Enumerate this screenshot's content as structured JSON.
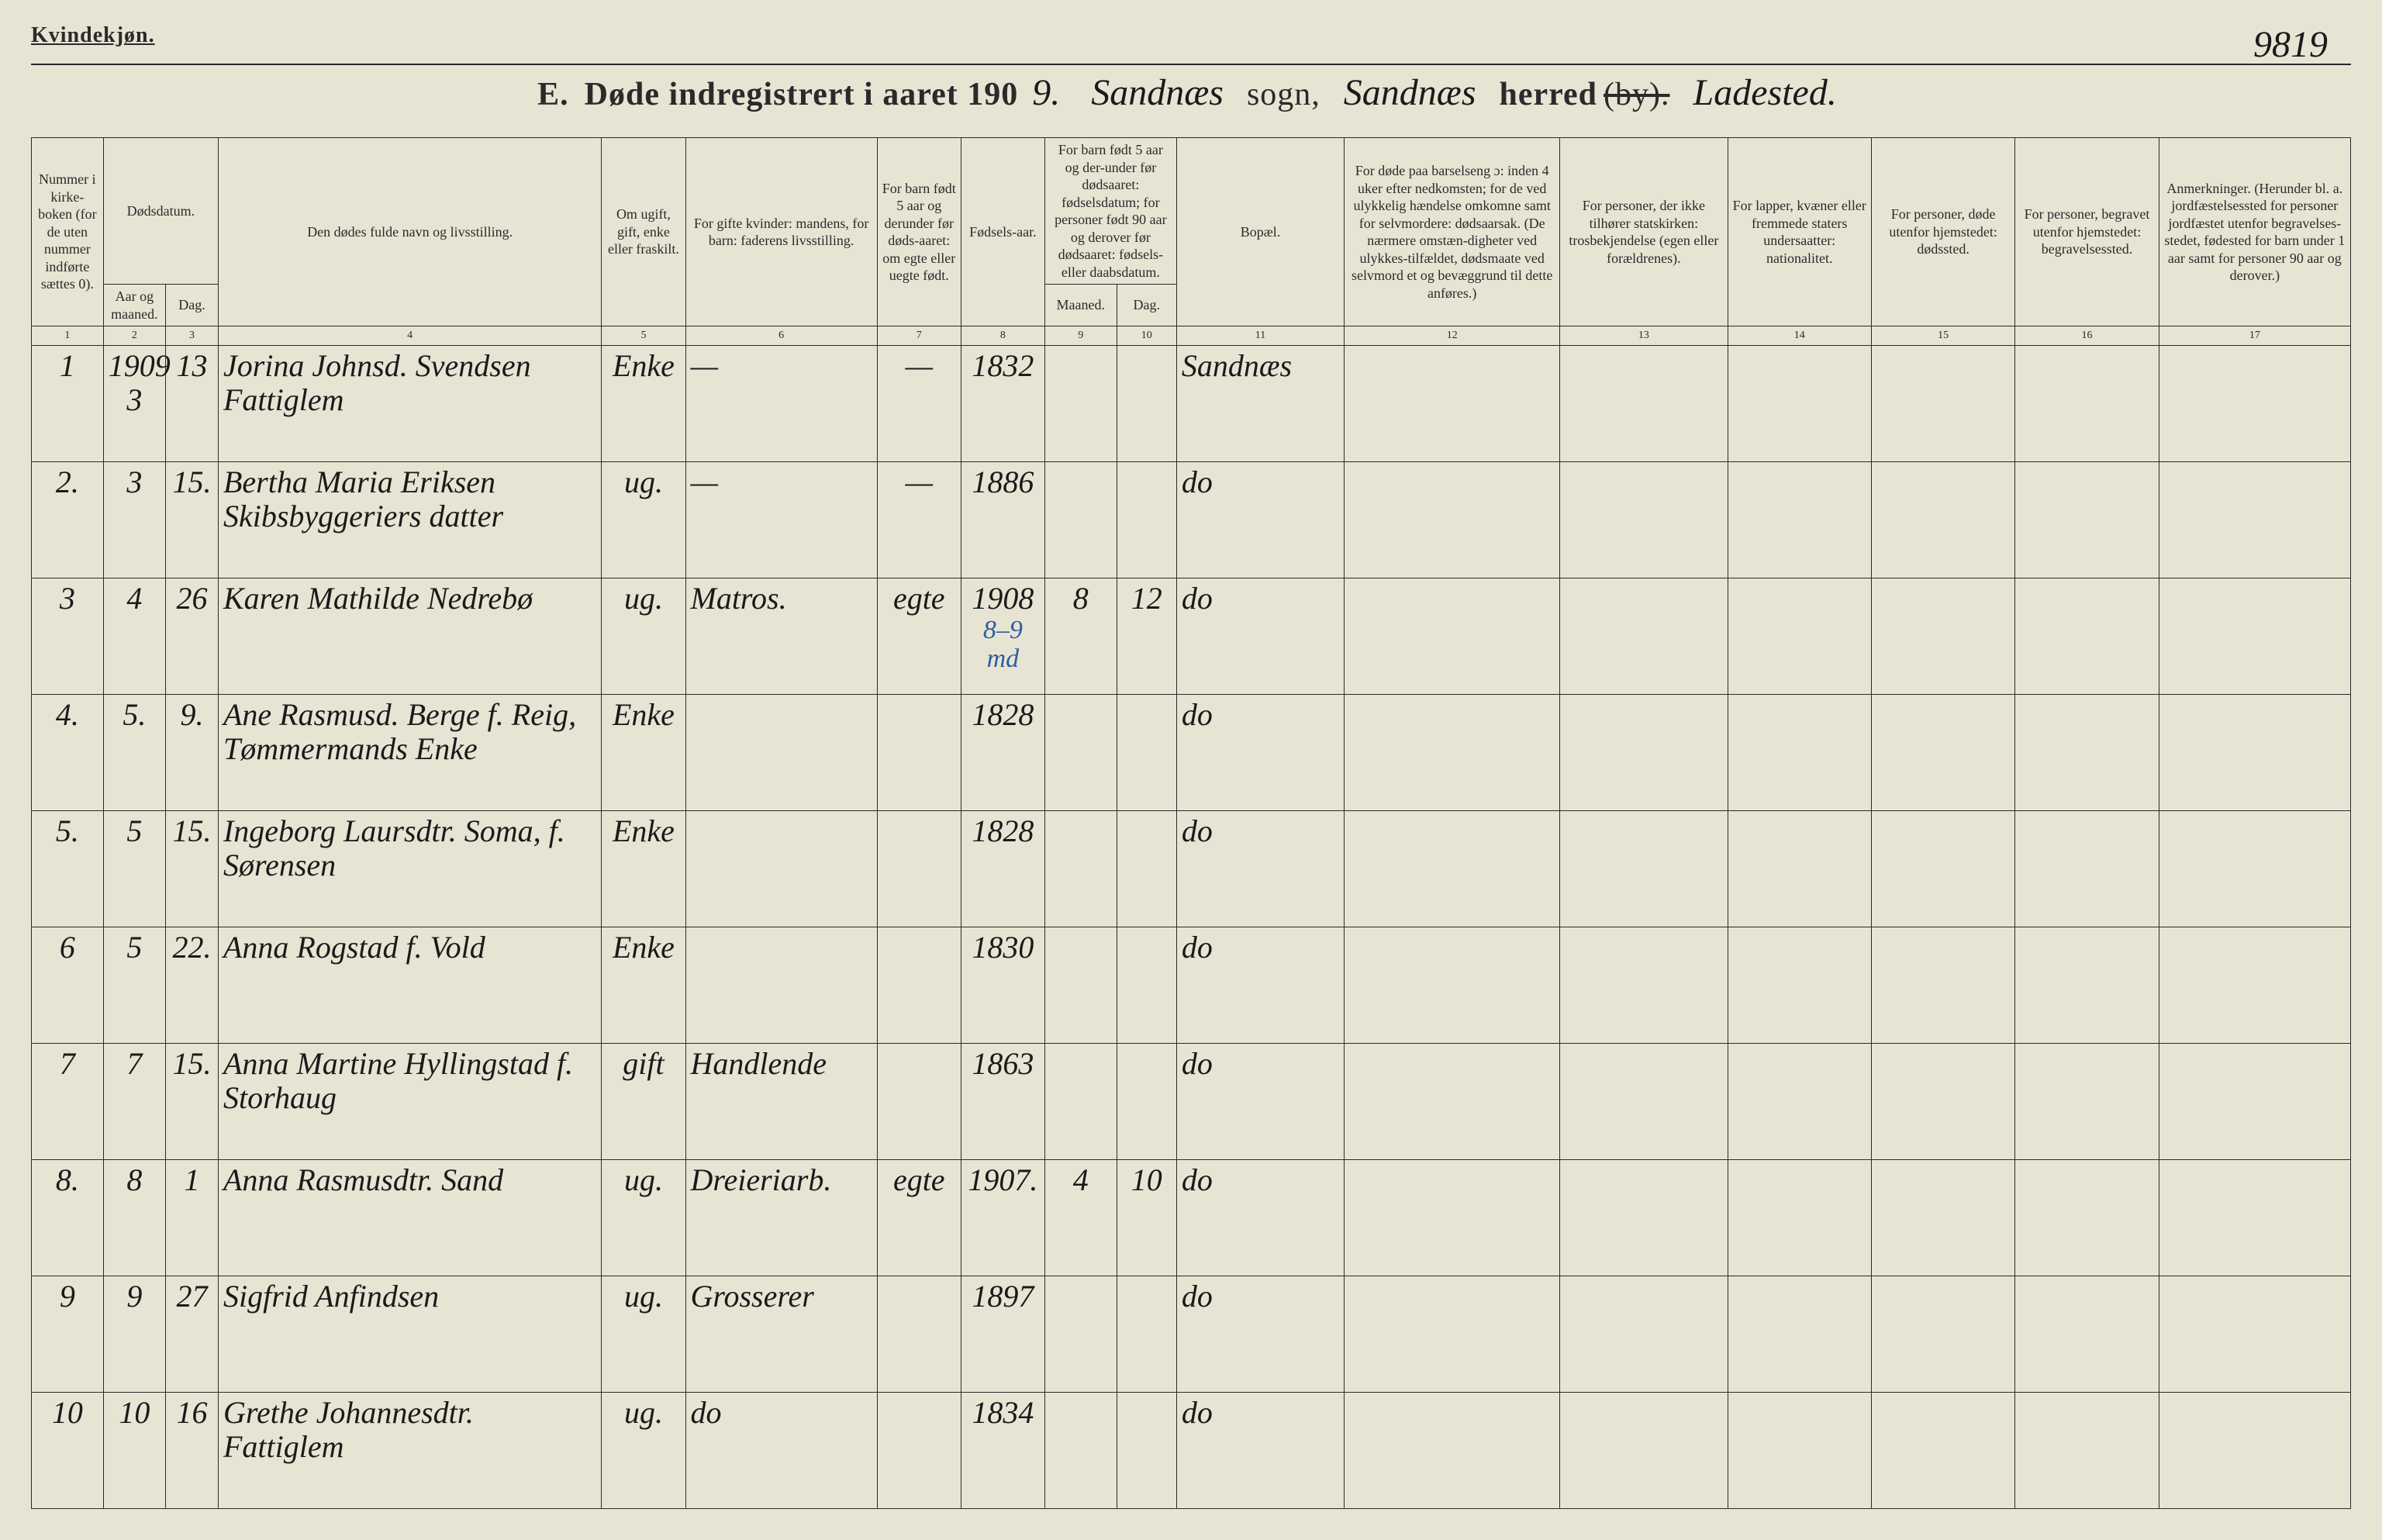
{
  "header": {
    "gender_label": "Kvindekjøn.",
    "page_number_handwritten": "9819",
    "title_prefix": "E.",
    "title_main": "Døde indregistrert i aaret 190",
    "year_suffix_handwritten": "9.",
    "sogn_value_handwritten": "Sandnæs",
    "sogn_label": "sogn,",
    "herred_value_handwritten": "Sandnæs",
    "herred_label": "herred",
    "by_label_struck": "(by).",
    "trailing_handwritten": "Ladested."
  },
  "columns": {
    "c1": "Nummer i kirke-boken (for de uten nummer indførte sættes 0).",
    "c2_group": "Dødsdatum.",
    "c2": "Aar og maaned.",
    "c3": "Dag.",
    "c4": "Den dødes fulde navn og livsstilling.",
    "c5": "Om ugift, gift, enke eller fraskilt.",
    "c6": "For gifte kvinder: mandens, for barn: faderens livsstilling.",
    "c7": "For barn født 5 aar og derunder før døds-aaret: om egte eller uegte født.",
    "c8": "Fødsels-aar.",
    "c9_10_group": "For barn født 5 aar og der-under før dødsaaret: fødselsdatum; for personer født 90 aar og derover før dødsaaret: fødsels- eller daabsdatum.",
    "c9": "Maaned.",
    "c10": "Dag.",
    "c11": "Bopæl.",
    "c12": "For døde paa barselseng ɔ: inden 4 uker efter nedkomsten; for de ved ulykkelig hændelse omkomne samt for selvmordere: dødsaarsak. (De nærmere omstæn-digheter ved ulykkes-tilfældet, dødsmaate ved selvmord et og bevæggrund til dette anføres.)",
    "c13": "For personer, der ikke tilhører statskirken: trosbekjendelse (egen eller forældrenes).",
    "c14": "For lapper, kvæner eller fremmede staters undersaatter: nationalitet.",
    "c15": "For personer, døde utenfor hjemstedet: dødssted.",
    "c16": "For personer, begravet utenfor hjemstedet: begravelsessted.",
    "c17": "Anmerkninger. (Herunder bl. a. jordfæstelsessted for personer jordfæstet utenfor begravelses-stedet, fødested for barn under 1 aar samt for personer 90 aar og derover.)"
  },
  "colnums": [
    "1",
    "2",
    "3",
    "4",
    "5",
    "6",
    "7",
    "8",
    "9",
    "10",
    "11",
    "12",
    "13",
    "14",
    "15",
    "16",
    "17"
  ],
  "rows": [
    {
      "n": "1",
      "ym": "1909 3",
      "d": "13",
      "name": "Jorina Johnsd. Svendsen Fattiglem",
      "status": "Enke",
      "father": "—",
      "legit": "—",
      "byear": "1832",
      "bm": "",
      "bd": "",
      "place": "Sandnæs",
      "c12": "",
      "c13": "",
      "c14": "",
      "c15": "",
      "c16": "",
      "c17": "",
      "annotation": ""
    },
    {
      "n": "2.",
      "ym": "3",
      "d": "15.",
      "name": "Bertha Maria Eriksen Skibsbyggeriers datter",
      "status": "ug.",
      "father": "—",
      "legit": "—",
      "byear": "1886",
      "bm": "",
      "bd": "",
      "place": "do",
      "c12": "",
      "c13": "",
      "c14": "",
      "c15": "",
      "c16": "",
      "c17": "",
      "annotation": ""
    },
    {
      "n": "3",
      "ym": "4",
      "d": "26",
      "name": "Karen Mathilde Nedrebø",
      "status": "ug.",
      "father": "Matros.",
      "legit": "egte",
      "byear": "1908",
      "bm": "8",
      "bd": "12",
      "place": "do",
      "c12": "",
      "c13": "",
      "c14": "",
      "c15": "",
      "c16": "",
      "c17": "",
      "annotation": "8–9 md"
    },
    {
      "n": "4.",
      "ym": "5.",
      "d": "9.",
      "name": "Ane Rasmusd. Berge f. Reig, Tømmermands Enke",
      "status": "Enke",
      "father": "",
      "legit": "",
      "byear": "1828",
      "bm": "",
      "bd": "",
      "place": "do",
      "c12": "",
      "c13": "",
      "c14": "",
      "c15": "",
      "c16": "",
      "c17": "",
      "annotation": ""
    },
    {
      "n": "5.",
      "ym": "5",
      "d": "15.",
      "name": "Ingeborg Laursdtr. Soma, f. Sørensen",
      "status": "Enke",
      "father": "",
      "legit": "",
      "byear": "1828",
      "bm": "",
      "bd": "",
      "place": "do",
      "c12": "",
      "c13": "",
      "c14": "",
      "c15": "",
      "c16": "",
      "c17": "",
      "annotation": ""
    },
    {
      "n": "6",
      "ym": "5",
      "d": "22.",
      "name": "Anna Rogstad f. Vold",
      "status": "Enke",
      "father": "",
      "legit": "",
      "byear": "1830",
      "bm": "",
      "bd": "",
      "place": "do",
      "c12": "",
      "c13": "",
      "c14": "",
      "c15": "",
      "c16": "",
      "c17": "",
      "annotation": ""
    },
    {
      "n": "7",
      "ym": "7",
      "d": "15.",
      "name": "Anna Martine Hyllingstad f. Storhaug",
      "status": "gift",
      "father": "Handlende",
      "legit": "",
      "byear": "1863",
      "bm": "",
      "bd": "",
      "place": "do",
      "c12": "",
      "c13": "",
      "c14": "",
      "c15": "",
      "c16": "",
      "c17": "",
      "annotation": ""
    },
    {
      "n": "8.",
      "ym": "8",
      "d": "1",
      "name": "Anna Rasmusdtr. Sand",
      "status": "ug.",
      "father": "Dreieriarb.",
      "legit": "egte",
      "byear": "1907.",
      "bm": "4",
      "bd": "10",
      "place": "do",
      "c12": "",
      "c13": "",
      "c14": "",
      "c15": "",
      "c16": "",
      "c17": "",
      "annotation": ""
    },
    {
      "n": "9",
      "ym": "9",
      "d": "27",
      "name": "Sigfrid Anfindsen",
      "status": "ug.",
      "father": "Grosserer",
      "legit": "",
      "byear": "1897",
      "bm": "",
      "bd": "",
      "place": "do",
      "c12": "",
      "c13": "",
      "c14": "",
      "c15": "",
      "c16": "",
      "c17": "",
      "annotation": ""
    },
    {
      "n": "10",
      "ym": "10",
      "d": "16",
      "name": "Grethe Johannesdtr. Fattiglem",
      "status": "ug.",
      "father": "do",
      "legit": "",
      "byear": "1834",
      "bm": "",
      "bd": "",
      "place": "do",
      "c12": "",
      "c13": "",
      "c14": "",
      "c15": "",
      "c16": "",
      "c17": "",
      "annotation": ""
    }
  ],
  "style": {
    "background_color": "#e8e4d4",
    "border_color": "#2a2a2a",
    "text_color": "#2a2a2a",
    "handwriting_color": "#1a1a1a",
    "annotation_color": "#2b5fa0",
    "header_fontsize": 18,
    "body_fontsize": 40,
    "title_fontsize": 42,
    "handwritten_fontsize": 48
  }
}
